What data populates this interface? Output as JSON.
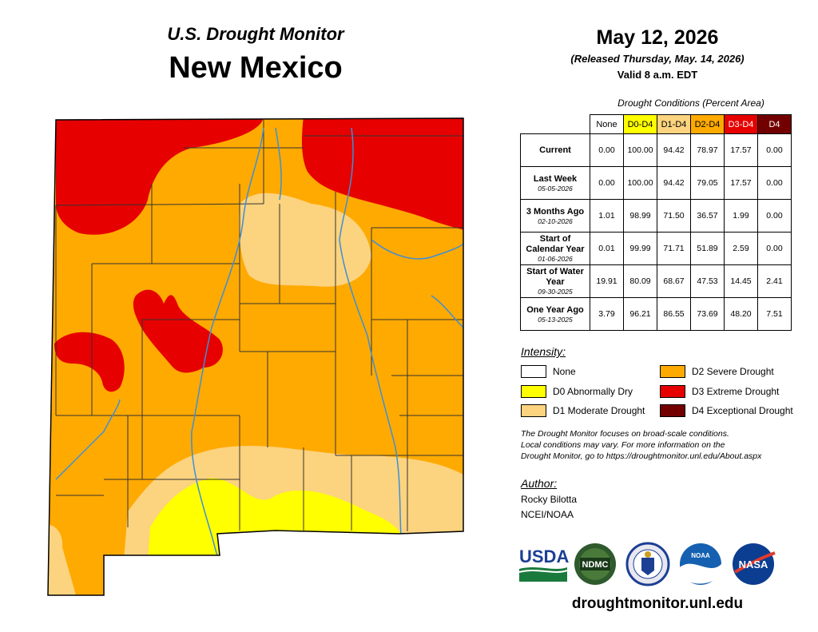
{
  "header": {
    "subtitle": "U.S. Drought Monitor",
    "state": "New Mexico",
    "date": "May 12, 2026",
    "released": "(Released Thursday, May. 14, 2026)",
    "valid": "Valid 8 a.m. EDT"
  },
  "table": {
    "title": "Drought Conditions (Percent Area)",
    "columns": [
      {
        "label": "None",
        "color": "#ffffff",
        "text_color": "#000000"
      },
      {
        "label": "D0-D4",
        "color": "#ffff00",
        "text_color": "#000000"
      },
      {
        "label": "D1-D4",
        "color": "#fcd37f",
        "text_color": "#000000"
      },
      {
        "label": "D2-D4",
        "color": "#ffaa00",
        "text_color": "#000000"
      },
      {
        "label": "D3-D4",
        "color": "#e60000",
        "text_color": "#ffffff"
      },
      {
        "label": "D4",
        "color": "#730000",
        "text_color": "#ffffff"
      }
    ],
    "rows": [
      {
        "label": "Current",
        "date": "",
        "values": [
          "0.00",
          "100.00",
          "94.42",
          "78.97",
          "17.57",
          "0.00"
        ]
      },
      {
        "label": "Last Week",
        "date": "05-05-2026",
        "values": [
          "0.00",
          "100.00",
          "94.42",
          "79.05",
          "17.57",
          "0.00"
        ]
      },
      {
        "label": "3 Months Ago",
        "date": "02-10-2026",
        "values": [
          "1.01",
          "98.99",
          "71.50",
          "36.57",
          "1.99",
          "0.00"
        ]
      },
      {
        "label": "Start of Calendar Year",
        "date": "01-06-2026",
        "values": [
          "0.01",
          "99.99",
          "71.71",
          "51.89",
          "2.59",
          "0.00"
        ]
      },
      {
        "label": "Start of Water Year",
        "date": "09-30-2025",
        "values": [
          "19.91",
          "80.09",
          "68.67",
          "47.53",
          "14.45",
          "2.41"
        ]
      },
      {
        "label": "One Year Ago",
        "date": "05-13-2025",
        "values": [
          "3.79",
          "96.21",
          "86.55",
          "73.69",
          "48.20",
          "7.51"
        ]
      }
    ]
  },
  "legend": {
    "title": "Intensity:",
    "items": [
      {
        "label": "None",
        "color": "#ffffff"
      },
      {
        "label": "D0 Abnormally Dry",
        "color": "#ffff00"
      },
      {
        "label": "D1 Moderate Drought",
        "color": "#fcd37f"
      },
      {
        "label": "D2 Severe Drought",
        "color": "#ffaa00"
      },
      {
        "label": "D3 Extreme Drought",
        "color": "#e60000"
      },
      {
        "label": "D4 Exceptional Drought",
        "color": "#730000"
      }
    ]
  },
  "note": {
    "line1": "The Drought Monitor focuses on broad-scale conditions.",
    "line2": "Local conditions may vary. For more information on the",
    "line3": "Drought Monitor, go to https://droughtmonitor.unl.edu/About.aspx"
  },
  "author": {
    "title": "Author:",
    "name": "Rocky Bilotta",
    "org": "NCEI/NOAA"
  },
  "logos": {
    "usda": "USDA",
    "ndmc": "NDMC",
    "noaa": "NOAA",
    "nasa": "NASA"
  },
  "url": "droughtmonitor.unl.edu",
  "colors": {
    "d0": "#ffff00",
    "d1": "#fcd37f",
    "d2": "#ffaa00",
    "d3": "#e60000",
    "d4": "#730000",
    "river": "#3d8fd8",
    "usda_blue": "#1c3f94",
    "usda_green": "#1a7a3c"
  }
}
